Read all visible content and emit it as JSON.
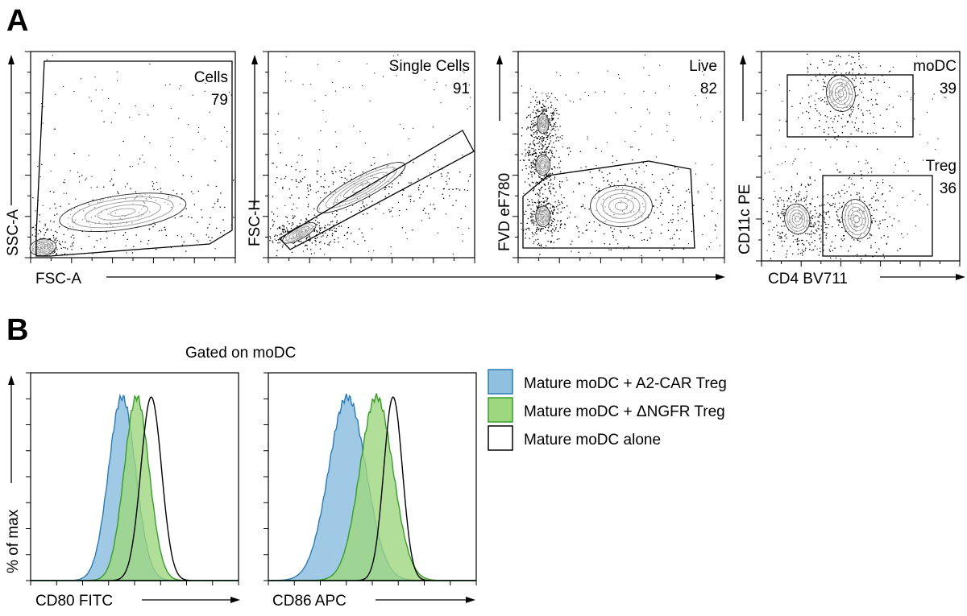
{
  "panels": [
    {
      "id": "A",
      "label": "A"
    },
    {
      "id": "B",
      "label": "B"
    }
  ],
  "chart_data": [
    {
      "type": "scatter",
      "panel": "A",
      "xlabel": "FSC-A",
      "ylabel": "SSC-A",
      "gate": {
        "name": "Cells",
        "percent": "79"
      },
      "plot_style": "density contour with outlier dots",
      "populations": [
        {
          "x": 0.06,
          "y": 0.05,
          "spread": 0.04
        },
        {
          "x": 0.45,
          "y": 0.22,
          "spread": 0.12
        }
      ]
    },
    {
      "type": "scatter",
      "panel": "A",
      "xlabel": "",
      "ylabel": "FSC-H",
      "gate": {
        "name": "Single Cells",
        "percent": "91"
      },
      "plot_style": "density contour with outlier dots",
      "populations": [
        {
          "x": 0.15,
          "y": 0.12,
          "spread": 0.05
        },
        {
          "x": 0.45,
          "y": 0.34,
          "spread": 0.1
        }
      ]
    },
    {
      "type": "scatter",
      "panel": "A",
      "xlabel": "",
      "ylabel": "FVD eF780",
      "gate": {
        "name": "Live",
        "percent": "82"
      },
      "plot_style": "density contour with outlier dots",
      "populations": [
        {
          "x": 0.12,
          "y": 0.2,
          "spread": 0.05
        },
        {
          "x": 0.12,
          "y": 0.45,
          "spread": 0.05
        },
        {
          "x": 0.12,
          "y": 0.65,
          "spread": 0.04
        },
        {
          "x": 0.5,
          "y": 0.25,
          "spread": 0.1
        }
      ]
    },
    {
      "type": "scatter",
      "panel": "A",
      "xlabel": "CD4 BV711",
      "ylabel": "CD11c PE",
      "gates": [
        {
          "name": "moDC",
          "percent": "39"
        },
        {
          "name": "Treg",
          "percent": "36"
        }
      ],
      "plot_style": "density contour with outlier dots",
      "populations": [
        {
          "x": 0.4,
          "y": 0.8,
          "spread": 0.08
        },
        {
          "x": 0.18,
          "y": 0.2,
          "spread": 0.07
        },
        {
          "x": 0.48,
          "y": 0.2,
          "spread": 0.08
        }
      ]
    },
    {
      "type": "area",
      "panel": "B",
      "title": "Gated on moDC",
      "xlabel": "CD80 FITC",
      "ylabel": "% of max",
      "series": [
        {
          "name": "Mature moDC + A2-CAR Treg",
          "mean": 0.44,
          "sd": 0.065,
          "peak": 1.0
        },
        {
          "name": "Mature moDC + ΔNGFR Treg",
          "mean": 0.51,
          "sd": 0.06,
          "peak": 1.0
        },
        {
          "name": "Mature moDC alone",
          "mean": 0.58,
          "sd": 0.05,
          "peak": 1.0
        }
      ]
    },
    {
      "type": "area",
      "panel": "B",
      "xlabel": "CD86 APC",
      "ylabel": "",
      "series": [
        {
          "name": "Mature moDC + A2-CAR Treg",
          "mean": 0.38,
          "sd": 0.09,
          "peak": 1.0
        },
        {
          "name": "Mature moDC + ΔNGFR Treg",
          "mean": 0.52,
          "sd": 0.08,
          "peak": 1.0
        },
        {
          "name": "Mature moDC alone",
          "mean": 0.6,
          "sd": 0.045,
          "peak": 1.0
        }
      ]
    }
  ],
  "legend": [
    {
      "label": "Mature moDC + A2-CAR Treg",
      "fill": "#8fc0e0",
      "stroke": "#2c7bb6"
    },
    {
      "label": "Mature moDC + ΔNGFR Treg",
      "fill": "#9ed77f",
      "stroke": "#3a9b2d"
    },
    {
      "label": "Mature moDC alone",
      "fill": "#ffffff",
      "stroke": "#000000"
    }
  ],
  "colors": {
    "a2car_fill": "#8fc0e0",
    "a2car_stroke": "#2c7bb6",
    "ngfr_fill": "#9ed77f",
    "ngfr_stroke": "#3a9b2d",
    "alone_stroke": "#000000",
    "overlap_fill": "#3a9d8a"
  }
}
